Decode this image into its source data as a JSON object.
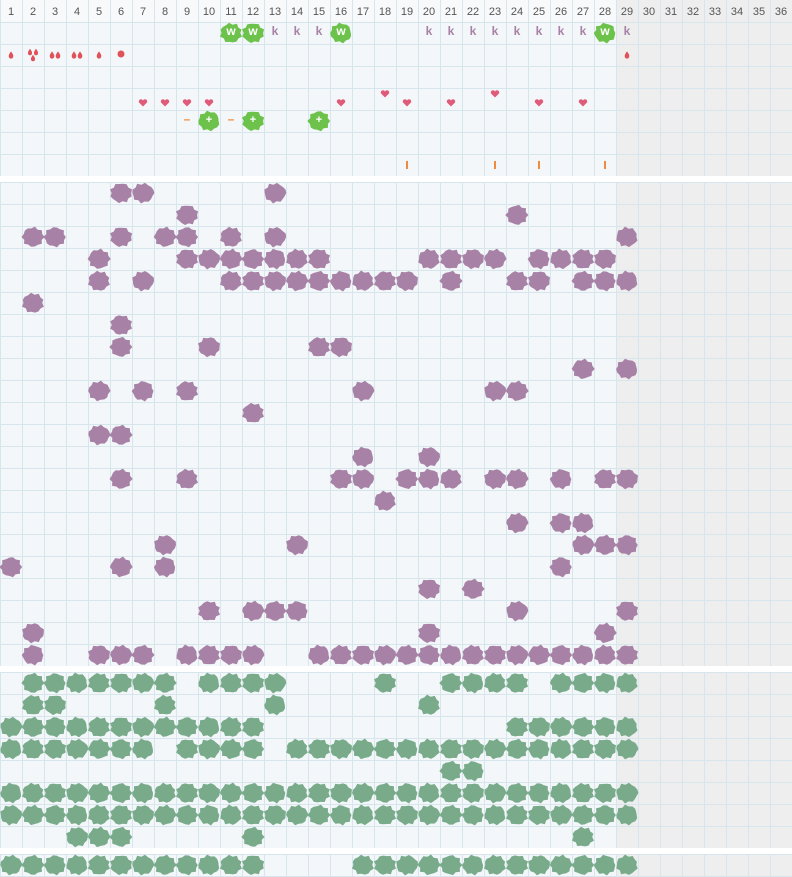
{
  "days": [
    1,
    2,
    3,
    4,
    5,
    6,
    7,
    8,
    9,
    10,
    11,
    12,
    13,
    14,
    15,
    16,
    17,
    18,
    19,
    20,
    21,
    22,
    23,
    24,
    25,
    26,
    27,
    28,
    29,
    30,
    31,
    32,
    33,
    34,
    35,
    36
  ],
  "future_from": 29,
  "colors": {
    "purple": "#a882a6",
    "green": "#79ab8b",
    "bright": "#6cc24a",
    "drop": "#e0525a",
    "heart": "#e05a7a",
    "tick": "#f08a3c",
    "minus": "#f08a3c"
  },
  "top": {
    "letters": [
      {
        "day": 11,
        "text": "w"
      },
      {
        "day": 12,
        "text": "w"
      },
      {
        "day": 13,
        "text": "k"
      },
      {
        "day": 14,
        "text": "k"
      },
      {
        "day": 15,
        "text": "k"
      },
      {
        "day": 16,
        "text": "w"
      },
      {
        "day": 20,
        "text": "k"
      },
      {
        "day": 21,
        "text": "k"
      },
      {
        "day": 22,
        "text": "k"
      },
      {
        "day": 23,
        "text": "k"
      },
      {
        "day": 24,
        "text": "k"
      },
      {
        "day": 25,
        "text": "k"
      },
      {
        "day": 26,
        "text": "k"
      },
      {
        "day": 27,
        "text": "k"
      },
      {
        "day": 28,
        "text": "w"
      },
      {
        "day": 29,
        "text": "k"
      }
    ],
    "drops": [
      {
        "day": 1,
        "count": 1
      },
      {
        "day": 2,
        "count": 3
      },
      {
        "day": 3,
        "count": 2
      },
      {
        "day": 4,
        "count": 2
      },
      {
        "day": 5,
        "count": 1
      },
      {
        "day": 6,
        "shape": "dot"
      },
      {
        "day": 29,
        "count": 1
      }
    ],
    "hearts": [
      7,
      8,
      9,
      10,
      16,
      19,
      21,
      25,
      27
    ],
    "hearts_high": [
      18,
      23
    ],
    "signs": [
      {
        "day": 9,
        "text": "–"
      },
      {
        "day": 10,
        "text": "+"
      },
      {
        "day": 11,
        "text": "–"
      },
      {
        "day": 12,
        "text": "+"
      },
      {
        "day": 15,
        "text": "+"
      }
    ],
    "ticks": [
      19,
      23,
      25,
      28
    ]
  },
  "purple_rows": [
    [
      6,
      7,
      13
    ],
    [
      9,
      24
    ],
    [
      2,
      3,
      6,
      8,
      9,
      11,
      13,
      29
    ],
    [
      5,
      9,
      10,
      11,
      12,
      13,
      14,
      15,
      20,
      21,
      22,
      23,
      25,
      26,
      27,
      28
    ],
    [
      5,
      7,
      11,
      12,
      13,
      14,
      15,
      16,
      17,
      18,
      19,
      21,
      24,
      25,
      27,
      28,
      29
    ],
    [
      2
    ],
    [
      6
    ],
    [
      6,
      10,
      15,
      16
    ],
    [
      27,
      29
    ],
    [
      5,
      7,
      9,
      17,
      23,
      24
    ],
    [
      12
    ],
    [
      5,
      6
    ],
    [
      17,
      20
    ],
    [
      6,
      9,
      16,
      17,
      19,
      20,
      21,
      23,
      24,
      26,
      28,
      29
    ],
    [
      18
    ],
    [
      24,
      26,
      27
    ],
    [
      8,
      14,
      27,
      28,
      29
    ],
    [
      1,
      6,
      8,
      26
    ],
    [
      20,
      22
    ],
    [
      10,
      12,
      13,
      14,
      24,
      29
    ],
    [
      2,
      20,
      28
    ],
    [
      2,
      5,
      6,
      7,
      9,
      10,
      11,
      12,
      15,
      16,
      17,
      18,
      19,
      20,
      21,
      22,
      23,
      24,
      25,
      26,
      27,
      28,
      29
    ]
  ],
  "green_rows": [
    [
      2,
      3,
      4,
      5,
      6,
      7,
      8,
      10,
      11,
      12,
      13,
      18,
      21,
      22,
      23,
      24,
      26,
      27,
      28,
      29
    ],
    [
      2,
      3,
      8,
      13,
      20
    ],
    [
      1,
      2,
      3,
      4,
      5,
      6,
      7,
      8,
      9,
      10,
      11,
      12,
      24,
      25,
      26,
      27,
      28,
      29
    ],
    [
      1,
      2,
      3,
      4,
      5,
      6,
      7,
      9,
      10,
      11,
      12,
      14,
      15,
      16,
      17,
      18,
      19,
      20,
      21,
      22,
      23,
      24,
      25,
      26,
      27,
      28,
      29
    ],
    [
      21,
      22
    ],
    [
      1,
      2,
      3,
      4,
      5,
      6,
      7,
      8,
      9,
      10,
      11,
      12,
      13,
      14,
      15,
      16,
      17,
      18,
      19,
      20,
      21,
      22,
      23,
      24,
      25,
      26,
      27,
      28,
      29
    ],
    [
      1,
      2,
      3,
      4,
      5,
      6,
      7,
      8,
      9,
      10,
      11,
      12,
      13,
      14,
      15,
      16,
      17,
      18,
      19,
      20,
      21,
      22,
      23,
      24,
      25,
      26,
      27,
      28,
      29
    ],
    [
      4,
      5,
      6,
      12,
      27
    ]
  ],
  "bottom_rows": [
    [
      1,
      2,
      3,
      4,
      5,
      6,
      7,
      8,
      9,
      10,
      11,
      12,
      17,
      18,
      19,
      20,
      21,
      22,
      23,
      24,
      25,
      26,
      27,
      28,
      29
    ]
  ]
}
